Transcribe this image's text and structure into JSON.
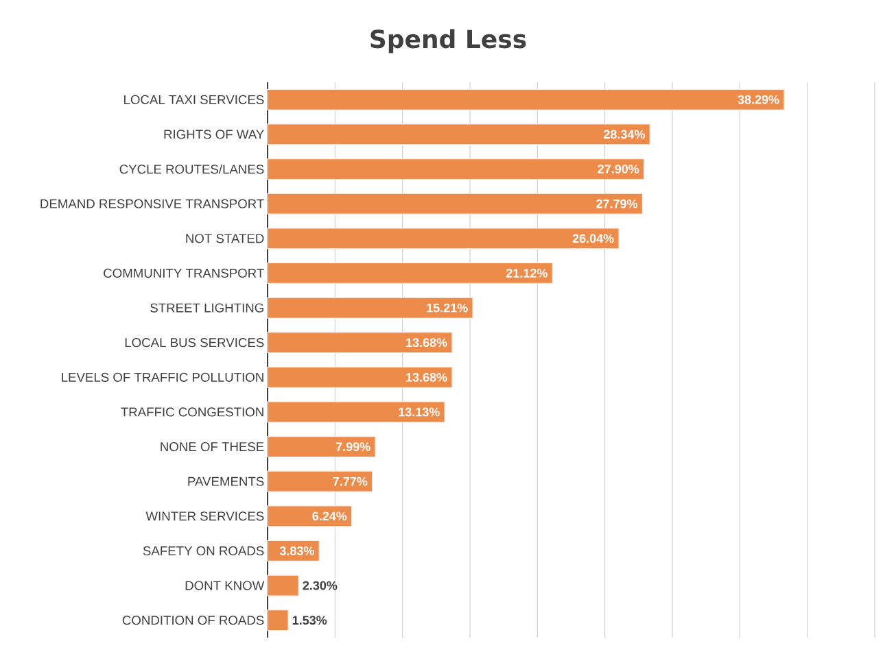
{
  "chart_data": {
    "type": "bar",
    "orientation": "horizontal",
    "title": "Spend Less",
    "categories": [
      "LOCAL TAXI SERVICES",
      "RIGHTS OF WAY",
      "CYCLE ROUTES/LANES",
      "DEMAND RESPONSIVE TRANSPORT",
      "NOT STATED",
      "COMMUNITY TRANSPORT",
      "STREET LIGHTING",
      "LOCAL BUS SERVICES",
      "LEVELS OF TRAFFIC POLLUTION",
      "TRAFFIC CONGESTION",
      "NONE OF THESE",
      "PAVEMENTS",
      "WINTER SERVICES",
      "SAFETY ON ROADS",
      "DONT KNOW",
      "CONDITION OF ROADS"
    ],
    "values": [
      38.29,
      28.34,
      27.9,
      27.79,
      26.04,
      21.12,
      15.21,
      13.68,
      13.68,
      13.13,
      7.99,
      7.77,
      6.24,
      3.83,
      2.3,
      1.53
    ],
    "value_labels": [
      "38.29%",
      "28.34%",
      "27.90%",
      "27.79%",
      "26.04%",
      "21.12%",
      "15.21%",
      "13.68%",
      "13.68%",
      "13.13%",
      "7.99%",
      "7.77%",
      "6.24%",
      "3.83%",
      "2.30%",
      "1.53%"
    ],
    "color": "#ed8b4b",
    "xlim": [
      0,
      45
    ],
    "xticks": [
      {
        "value": 0,
        "label": null
      },
      {
        "value": 5,
        "label": null
      },
      {
        "value": 10,
        "label": null
      },
      {
        "value": 15,
        "label": null
      },
      {
        "value": 20,
        "label": null
      },
      {
        "value": 25,
        "label": null
      },
      {
        "value": 30,
        "label": null
      },
      {
        "value": 35,
        "label": null
      },
      {
        "value": 40,
        "label": null
      },
      {
        "value": 45,
        "label": null
      }
    ],
    "grid": "x",
    "tick_labels": "y"
  }
}
